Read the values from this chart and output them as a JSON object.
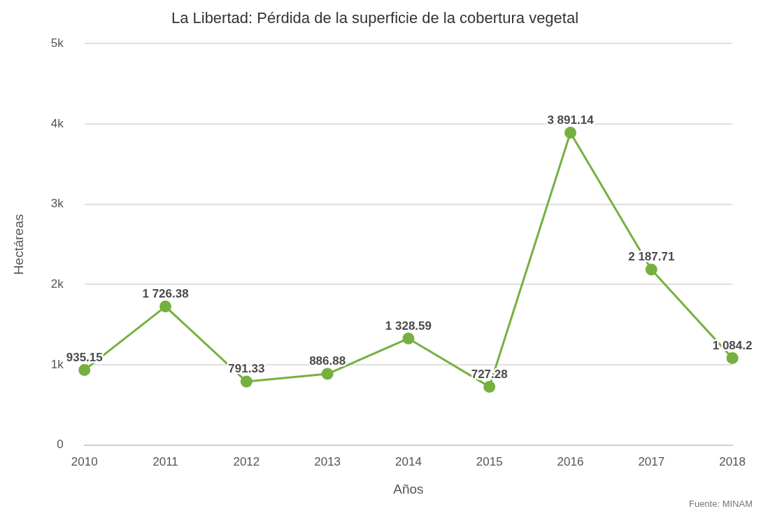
{
  "chart_data": {
    "type": "line",
    "title": "La Libertad: Pérdida de la superficie de la cobertura vegetal",
    "xlabel": "Años",
    "ylabel": "Hectáreas",
    "categories": [
      "2010",
      "2011",
      "2012",
      "2013",
      "2014",
      "2015",
      "2016",
      "2017",
      "2018"
    ],
    "series": [
      {
        "color": "#76b041",
        "values": [
          935.15,
          1726.38,
          791.33,
          886.88,
          1328.59,
          727.28,
          3891.14,
          2187.71,
          1084.2
        ],
        "value_labels": [
          "935.15",
          "1 726.38",
          "791.33",
          "886.88",
          "1 328.59",
          "727.28",
          "3 891.14",
          "2 187.71",
          "1 084.2"
        ]
      }
    ],
    "ylim": [
      0,
      5000
    ],
    "yticks": [
      0,
      {
        "value": 1000,
        "label": "1k"
      },
      {
        "value": 2000,
        "label": "2k"
      },
      {
        "value": 3000,
        "label": "3k"
      },
      {
        "value": 4000,
        "label": "4k"
      },
      {
        "value": 5000,
        "label": "5k"
      }
    ],
    "grid": "y",
    "legend": false,
    "marker": "circle",
    "line_style": "solid",
    "annotations": [
      "Fuente: MINAM"
    ]
  }
}
